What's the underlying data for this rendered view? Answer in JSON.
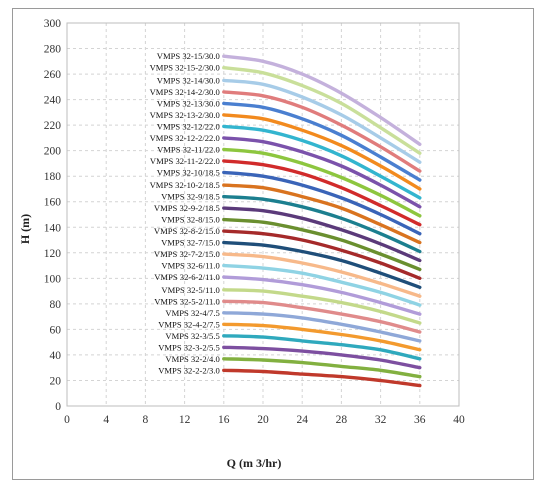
{
  "chart_data": {
    "type": "line",
    "xlabel": "Q (m 3/hr)",
    "ylabel": "H (m)",
    "xlim": [
      0,
      40
    ],
    "ylim": [
      0,
      300
    ],
    "x_ticks": [
      "0",
      "4",
      "8",
      "12",
      "16",
      "20",
      "24",
      "28",
      "32",
      "36",
      "40"
    ],
    "y_ticks": [
      "0",
      "20",
      "40",
      "60",
      "80",
      "100",
      "120",
      "140",
      "160",
      "180",
      "200",
      "220",
      "240",
      "260",
      "280",
      "300"
    ],
    "grid": "dashed",
    "x": [
      16,
      20,
      24,
      28,
      32,
      36
    ],
    "series": [
      {
        "name": "VMPS 32-2-2/3.0",
        "color": "#c0392b",
        "values": [
          28,
          27,
          25,
          23,
          20,
          16
        ]
      },
      {
        "name": "VMPS 32-2/4.0",
        "color": "#82b040",
        "values": [
          37,
          36,
          34,
          31,
          28,
          23
        ]
      },
      {
        "name": "VMPS 32-3-2/5.5",
        "color": "#7d4fa0",
        "values": [
          46,
          45,
          43,
          40,
          36,
          30
        ]
      },
      {
        "name": "VMPS 32-3/5.5",
        "color": "#2fa9bd",
        "values": [
          55,
          54,
          51,
          48,
          44,
          37
        ]
      },
      {
        "name": "VMPS 32-4-2/7.5",
        "color": "#f39a2e",
        "values": [
          64,
          63,
          60,
          56,
          51,
          44
        ]
      },
      {
        "name": "VMPS 32-4/7.5",
        "color": "#8fa8d8",
        "values": [
          73,
          72,
          69,
          64,
          58,
          51
        ]
      },
      {
        "name": "VMPS 32-5-2/11.0",
        "color": "#e08b8b",
        "values": [
          82,
          81,
          77,
          72,
          66,
          58
        ]
      },
      {
        "name": "VMPS 32-5/11.0",
        "color": "#c3d98a",
        "values": [
          91,
          90,
          86,
          81,
          74,
          65
        ]
      },
      {
        "name": "VMPS 32-6-2/11.0",
        "color": "#b19cd9",
        "values": [
          101,
          99,
          95,
          89,
          81,
          72
        ]
      },
      {
        "name": "VMPS 32-6/11.0",
        "color": "#8fd3e4",
        "values": [
          110,
          108,
          104,
          97,
          89,
          79
        ]
      },
      {
        "name": "VMPS 32-7-2/15.0",
        "color": "#f7b98a",
        "values": [
          119,
          117,
          112,
          105,
          96,
          86
        ]
      },
      {
        "name": "VMPS 32-7/15.0",
        "color": "#1f4e79",
        "values": [
          128,
          126,
          121,
          114,
          104,
          93
        ]
      },
      {
        "name": "VMPS 32-8-2/15.0",
        "color": "#a52a2a",
        "values": [
          137,
          135,
          130,
          122,
          112,
          100
        ]
      },
      {
        "name": "VMPS 32-8/15.0",
        "color": "#6a8f2f",
        "values": [
          146,
          144,
          138,
          130,
          119,
          107
        ]
      },
      {
        "name": "VMPS 32-9-2/18.5",
        "color": "#5b3a7a",
        "values": [
          155,
          153,
          147,
          138,
          127,
          114
        ]
      },
      {
        "name": "VMPS 32-9/18.5",
        "color": "#1c7f8f",
        "values": [
          164,
          162,
          156,
          147,
          135,
          121
        ]
      },
      {
        "name": "VMPS 32-10-2/18.5",
        "color": "#d9731f",
        "values": [
          173,
          171,
          164,
          155,
          142,
          128
        ]
      },
      {
        "name": "VMPS 32-10/18.5",
        "color": "#3a64b8",
        "values": [
          183,
          180,
          173,
          163,
          150,
          135
        ]
      },
      {
        "name": "VMPS 32-11-2/22.0",
        "color": "#d12b2b",
        "values": [
          192,
          189,
          182,
          171,
          157,
          142
        ]
      },
      {
        "name": "VMPS 32-11/22.0",
        "color": "#8dc63f",
        "values": [
          201,
          198,
          190,
          179,
          165,
          149
        ]
      },
      {
        "name": "VMPS 32-12-2/22.0",
        "color": "#7b52ab",
        "values": [
          210,
          207,
          199,
          188,
          173,
          156
        ]
      },
      {
        "name": "VMPS 32-12/22.0",
        "color": "#33b5cf",
        "values": [
          219,
          216,
          208,
          196,
          180,
          163
        ]
      },
      {
        "name": "VMPS 32-13-2/30.0",
        "color": "#f28a1e",
        "values": [
          228,
          225,
          216,
          204,
          188,
          170
        ]
      },
      {
        "name": "VMPS 32-13/30.0",
        "color": "#4a7fd0",
        "values": [
          237,
          234,
          225,
          212,
          195,
          177
        ]
      },
      {
        "name": "VMPS 32-14-2/30.0",
        "color": "#e07c7c",
        "values": [
          246,
          243,
          234,
          220,
          203,
          184
        ]
      },
      {
        "name": "VMPS 32-14/30.0",
        "color": "#a7cce8",
        "values": [
          255,
          252,
          242,
          228,
          210,
          191
        ]
      },
      {
        "name": "VMPS 32-15-2/30.0",
        "color": "#c9df9a",
        "values": [
          265,
          261,
          251,
          237,
          218,
          198
        ]
      },
      {
        "name": "VMPS 32-15/30.0",
        "color": "#c4b1dc",
        "values": [
          274,
          270,
          260,
          245,
          226,
          205
        ]
      }
    ]
  }
}
